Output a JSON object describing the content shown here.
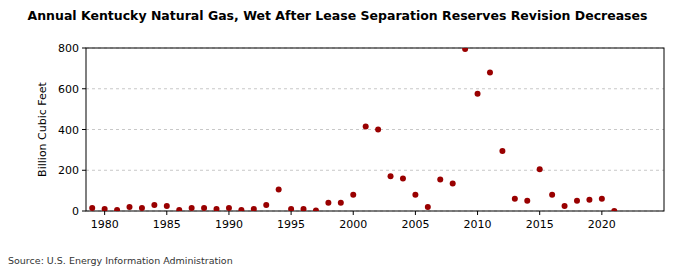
{
  "chart_data": {
    "type": "scatter",
    "title": "Annual Kentucky Natural Gas, Wet After Lease Separation Reserves Revision Decreases",
    "y_label": "Billion Cubic Feet",
    "source": "Source: U.S. Energy Information Administration",
    "x": [
      1979,
      1980,
      1981,
      1982,
      1983,
      1984,
      1985,
      1986,
      1987,
      1988,
      1989,
      1990,
      1991,
      1992,
      1993,
      1994,
      1995,
      1996,
      1997,
      1998,
      1999,
      2000,
      2001,
      2002,
      2003,
      2004,
      2005,
      2006,
      2007,
      2008,
      2009,
      2010,
      2011,
      2012,
      2013,
      2014,
      2015,
      2016,
      2017,
      2018,
      2019,
      2020,
      2021
    ],
    "values": [
      15,
      10,
      5,
      20,
      15,
      30,
      25,
      5,
      15,
      15,
      10,
      15,
      5,
      10,
      30,
      105,
      10,
      10,
      2,
      40,
      40,
      80,
      415,
      400,
      170,
      160,
      80,
      20,
      155,
      135,
      795,
      575,
      680,
      295,
      60,
      50,
      205,
      80,
      25,
      50,
      55,
      60,
      0
    ],
    "color": "#990000",
    "marker": "circle",
    "xlim": [
      1978.5,
      2025
    ],
    "xticks": [
      1980,
      1985,
      1990,
      1995,
      2000,
      2005,
      2010,
      2015,
      2020
    ],
    "ylim": [
      0,
      800
    ],
    "yticks": [
      0,
      200,
      400,
      600,
      800
    ],
    "grid": true
  }
}
